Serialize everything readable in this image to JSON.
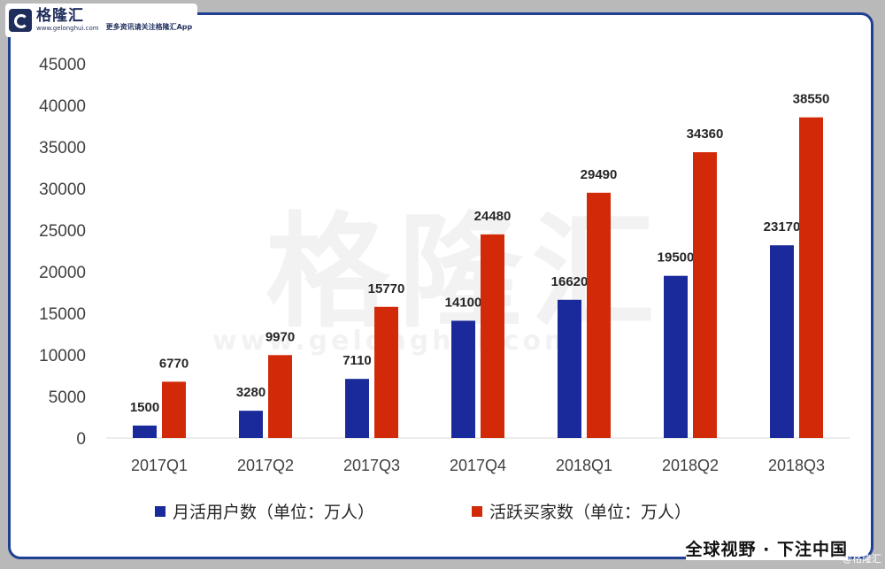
{
  "brand": {
    "name": "格隆汇",
    "url": "www.gelonghui.com",
    "slogan": "更多资讯请关注格隆汇App"
  },
  "watermark": {
    "big": "格隆汇",
    "small": "www.gelonghui.com",
    "corner": "@格隆汇"
  },
  "footer": "全球视野 · 下注中国",
  "chart_data": {
    "type": "bar",
    "categories": [
      "2017Q1",
      "2017Q2",
      "2017Q3",
      "2017Q4",
      "2018Q1",
      "2018Q2",
      "2018Q3"
    ],
    "series": [
      {
        "name": "月活用户数（单位：万人）",
        "color": "#1a2a9a",
        "values": [
          1500,
          3280,
          7110,
          14100,
          16620,
          19500,
          23170
        ]
      },
      {
        "name": "活跃买家数（单位：万人）",
        "color": "#d22a08",
        "values": [
          6770,
          9970,
          15770,
          24480,
          29490,
          34360,
          38550
        ]
      }
    ],
    "ylim": [
      0,
      45000
    ],
    "yticks": [
      0,
      5000,
      10000,
      15000,
      20000,
      25000,
      30000,
      35000,
      40000,
      45000
    ],
    "grid": false,
    "legend": "bottom"
  }
}
